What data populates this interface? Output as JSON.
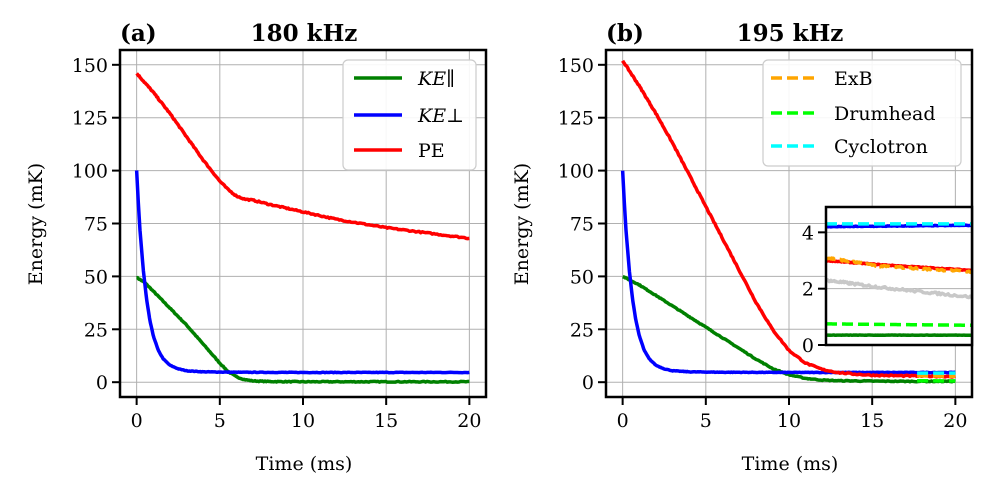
{
  "chart_data": [
    {
      "type": "line",
      "panel": "(a)",
      "title": "180 kHz",
      "xlabel": "Time (ms)",
      "ylabel": "Energy (mK)",
      "xlim": [
        -1,
        21
      ],
      "ylim": [
        -7,
        157
      ],
      "xticks": [
        0,
        5,
        10,
        15,
        20
      ],
      "yticks": [
        0,
        25,
        50,
        75,
        100,
        125,
        150
      ],
      "grid": true,
      "legend_position": "top-right",
      "series": [
        {
          "name": "KE∥",
          "color": "#008000",
          "style": "solid",
          "noise": 0.4,
          "x": [
            0,
            0.5,
            1,
            2,
            3,
            4,
            5,
            5.5,
            6,
            6.5,
            7,
            8,
            10,
            15,
            20
          ],
          "y": [
            49.5,
            47,
            43,
            35,
            27,
            18,
            9,
            5,
            2.5,
            1.2,
            0.6,
            0.3,
            0.2,
            0.2,
            0.2
          ]
        },
        {
          "name": "KE⊥",
          "color": "#0000ff",
          "style": "solid",
          "noise": 0.25,
          "x": [
            0,
            0.1,
            0.2,
            0.4,
            0.6,
            0.8,
            1,
            1.3,
            1.6,
            2,
            2.5,
            3,
            4,
            6,
            10,
            20
          ],
          "y": [
            100,
            85,
            72,
            53,
            39,
            29,
            22,
            15,
            11,
            8,
            6.3,
            5.4,
            4.9,
            4.7,
            4.6,
            4.6
          ]
        },
        {
          "name": "PE",
          "color": "#ff0000",
          "style": "solid",
          "noise": 0.6,
          "x": [
            0,
            1,
            2,
            3,
            4,
            5,
            5.5,
            6,
            6.5,
            7,
            8,
            10,
            12,
            15,
            20
          ],
          "y": [
            146,
            137,
            127,
            116,
            105,
            95,
            91,
            88,
            86.5,
            86,
            84,
            80.5,
            77,
            73,
            68
          ]
        }
      ]
    },
    {
      "type": "line",
      "panel": "(b)",
      "title": "195 kHz",
      "xlabel": "Time (ms)",
      "ylabel": "Energy (mK)",
      "xlim": [
        -1,
        21
      ],
      "ylim": [
        -7,
        157
      ],
      "xticks": [
        0,
        5,
        10,
        15,
        20
      ],
      "yticks": [
        0,
        25,
        50,
        75,
        100,
        125,
        150
      ],
      "grid": true,
      "legend_position": "top-right",
      "series": [
        {
          "name": "KE∥",
          "color": "#008000",
          "style": "solid",
          "noise": 0.4,
          "x": [
            0,
            1,
            2,
            3,
            4,
            5,
            6,
            7,
            8,
            9,
            10,
            11,
            12,
            13,
            15,
            17,
            20
          ],
          "y": [
            50,
            46,
            41,
            36,
            31,
            26,
            21,
            16,
            11,
            6.5,
            3.5,
            1.8,
            1,
            0.7,
            0.5,
            0.4,
            0.4
          ]
        },
        {
          "name": "KE⊥",
          "color": "#0000ff",
          "style": "solid",
          "noise": 0.25,
          "x": [
            0,
            0.1,
            0.2,
            0.4,
            0.6,
            0.8,
            1,
            1.3,
            1.6,
            2,
            2.5,
            3,
            4,
            6,
            10,
            20
          ],
          "y": [
            100,
            85,
            72,
            53,
            39,
            29,
            22,
            15,
            11,
            8,
            6.3,
            5.4,
            4.9,
            4.7,
            4.6,
            4.6
          ]
        },
        {
          "name": "PE",
          "color": "#ff0000",
          "style": "solid",
          "noise": 0.6,
          "x": [
            0,
            1,
            2,
            3,
            4,
            5,
            6,
            7,
            8,
            9,
            10,
            11,
            12,
            13,
            14,
            15,
            17,
            20
          ],
          "y": [
            152,
            140,
            127,
            113,
            98,
            83,
            68,
            53,
            38,
            25,
            15,
            9,
            6,
            4.5,
            3.8,
            3.3,
            3,
            2.7
          ]
        },
        {
          "name": "ExB",
          "color": "#ffa500",
          "style": "dashed",
          "x": [
            17.7,
            20
          ],
          "y": [
            3,
            2.8
          ]
        },
        {
          "name": "Drumhead",
          "color": "#00ff00",
          "style": "dashed",
          "x": [
            17.7,
            20
          ],
          "y": [
            0.7,
            0.6
          ]
        },
        {
          "name": "Cyclotron",
          "color": "#00ffff",
          "style": "dashed",
          "x": [
            17.7,
            20
          ],
          "y": [
            4.3,
            4.3
          ]
        }
      ],
      "inset": {
        "xlim": [
          17.5,
          20.2
        ],
        "ylim": [
          0,
          4.9
        ],
        "yticks": [
          0,
          2,
          4
        ],
        "grid": true,
        "series": [
          {
            "name": "KE⊥",
            "color": "#0000ff",
            "style": "solid",
            "noise": 0.02,
            "x": [
              17.5,
              20.2
            ],
            "y": [
              4.2,
              4.25
            ]
          },
          {
            "name": "Cyclotron",
            "color": "#00ffff",
            "style": "dashed",
            "x": [
              17.5,
              20.2
            ],
            "y": [
              4.3,
              4.3
            ]
          },
          {
            "name": "PE",
            "color": "#ff0000",
            "style": "solid",
            "noise": 0.03,
            "x": [
              17.5,
              18.5,
              20.2
            ],
            "y": [
              3.0,
              2.85,
              2.65
            ]
          },
          {
            "name": "ExB",
            "color": "#ffa500",
            "style": "dashed",
            "noise": 0.06,
            "x": [
              17.5,
              18.5,
              20.2
            ],
            "y": [
              3.1,
              2.8,
              2.6
            ]
          },
          {
            "name": "",
            "color": "#c8c8c8",
            "style": "solid",
            "noise": 0.08,
            "x": [
              17.5,
              18.5,
              20.2
            ],
            "y": [
              2.3,
              2.05,
              1.7
            ]
          },
          {
            "name": "Drumhead",
            "color": "#00ff00",
            "style": "dashed",
            "x": [
              17.5,
              20.2
            ],
            "y": [
              0.75,
              0.7
            ]
          },
          {
            "name": "KE∥",
            "color": "#008000",
            "style": "solid",
            "noise": 0.01,
            "x": [
              17.5,
              20.2
            ],
            "y": [
              0.35,
              0.35
            ]
          }
        ]
      }
    }
  ]
}
